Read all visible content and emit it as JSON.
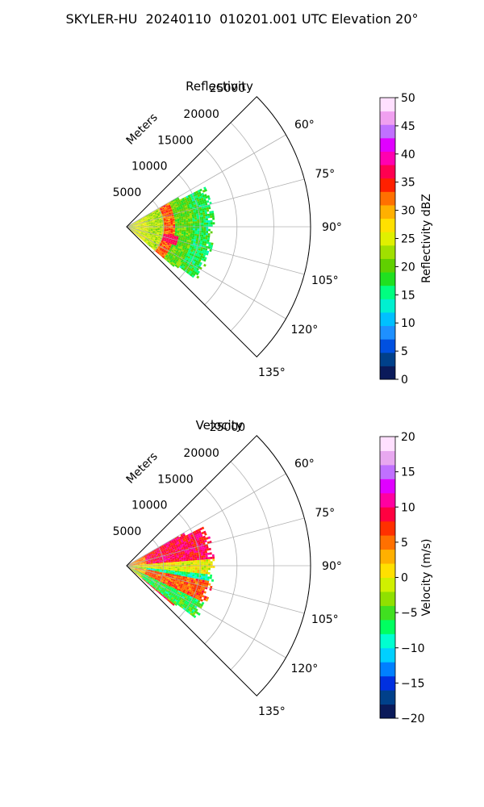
{
  "figure": {
    "title": "SKYLER-HU  20240110  010201.001 UTC Elevation 20°"
  },
  "chart_data": [
    {
      "type": "heatmap",
      "subtype": "polar-sector",
      "title": "Reflectivity",
      "radial_axis_label": "Meters",
      "radial_ticks": [
        5000,
        10000,
        15000,
        20000,
        25000
      ],
      "radial_tick_labels": [
        "5000",
        "10000",
        "15000",
        "20000",
        "25000"
      ],
      "radial_range": [
        0,
        25000
      ],
      "angle_range_deg": [
        45,
        135
      ],
      "angle_ticks_deg": [
        60,
        75,
        90,
        105,
        120,
        135
      ],
      "angle_tick_labels": [
        "60°",
        "75°",
        "90°",
        "105°",
        "120°",
        "135°"
      ],
      "grid": true,
      "data_extent_m": 12000,
      "colorbar": {
        "label": "Reflectivity dBZ",
        "range": [
          0,
          50
        ],
        "ticks": [
          0,
          5,
          10,
          15,
          20,
          25,
          30,
          35,
          40,
          45,
          50
        ],
        "tick_labels": [
          "0",
          "5",
          "10",
          "15",
          "20",
          "25",
          "30",
          "35",
          "40",
          "45",
          "50"
        ],
        "colors": [
          "#0a1a5a",
          "#00408a",
          "#0050e0",
          "#1e90ff",
          "#00c0ff",
          "#00f0d0",
          "#00ff80",
          "#20e020",
          "#60d000",
          "#a0e000",
          "#e0f000",
          "#ffe000",
          "#ffb000",
          "#ff7000",
          "#ff2000",
          "#ff0050",
          "#ff00b0",
          "#e000ff",
          "#c070ff",
          "#f0a0f0",
          "#ffe0ff"
        ]
      },
      "field_summary": [
        {
          "range_m": [
            0,
            3000
          ],
          "value": 25
        },
        {
          "range_m": [
            3000,
            5000
          ],
          "value": 23
        },
        {
          "range_m": [
            5000,
            6500
          ],
          "value": 33
        },
        {
          "range_m": [
            6500,
            9000
          ],
          "value": 20
        },
        {
          "range_m": [
            9000,
            12000
          ],
          "value": 17
        }
      ]
    },
    {
      "type": "heatmap",
      "subtype": "polar-sector",
      "title": "Velocity",
      "radial_axis_label": "Meters",
      "radial_ticks": [
        5000,
        10000,
        15000,
        20000,
        25000
      ],
      "radial_tick_labels": [
        "5000",
        "10000",
        "15000",
        "20000",
        "25000"
      ],
      "radial_range": [
        0,
        25000
      ],
      "angle_range_deg": [
        45,
        135
      ],
      "angle_ticks_deg": [
        60,
        75,
        90,
        105,
        120,
        135
      ],
      "angle_tick_labels": [
        "60°",
        "75°",
        "90°",
        "105°",
        "120°",
        "135°"
      ],
      "grid": true,
      "data_extent_m": 12000,
      "colorbar": {
        "label": "Velocity (m/s)",
        "range": [
          -20,
          20
        ],
        "ticks": [
          -20,
          -15,
          -10,
          -5,
          0,
          5,
          10,
          15,
          20
        ],
        "tick_labels": [
          "−20",
          "−15",
          "−10",
          "−5",
          "0",
          "5",
          "10",
          "15",
          "20"
        ],
        "colors": [
          "#0a1a5a",
          "#00408a",
          "#0030e0",
          "#0080ff",
          "#00d0ff",
          "#00ffd0",
          "#00ff60",
          "#40e020",
          "#90e000",
          "#d0f000",
          "#ffe000",
          "#ffb000",
          "#ff7000",
          "#ff3000",
          "#ff0040",
          "#ff00a0",
          "#e000ff",
          "#c070ff",
          "#e8a8f0",
          "#ffe0ff"
        ]
      },
      "field_summary": [
        {
          "angle_deg": [
            60,
            85
          ],
          "value": 9
        },
        {
          "angle_deg": [
            85,
            95
          ],
          "value": 0
        },
        {
          "angle_deg": [
            95,
            100
          ],
          "value": -8
        },
        {
          "angle_deg": [
            100,
            115
          ],
          "value": 6
        },
        {
          "angle_deg": [
            115,
            128
          ],
          "value": -6
        }
      ]
    }
  ]
}
